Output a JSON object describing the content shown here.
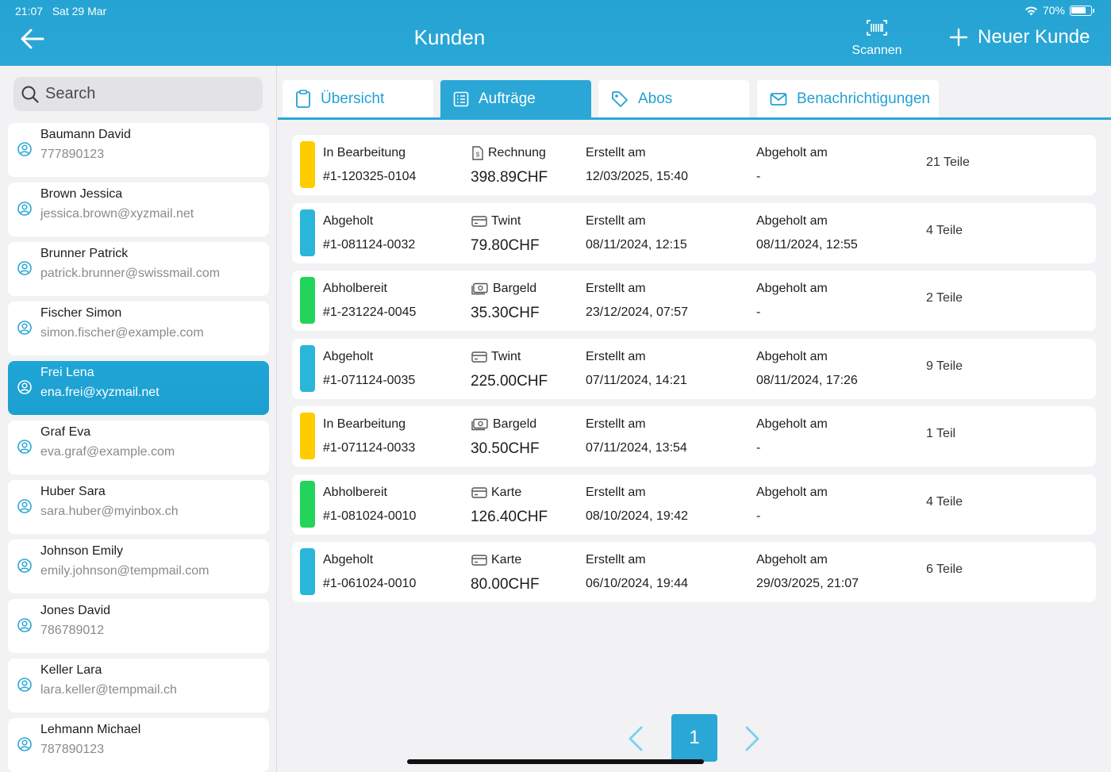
{
  "status": {
    "time": "21:07",
    "date": "Sat 29 Mar",
    "battery": "70%"
  },
  "header": {
    "title": "Kunden",
    "scan_label": "Scannen",
    "new_label": "Neuer Kunde"
  },
  "search": {
    "placeholder": "Search"
  },
  "customers": [
    {
      "name": "Baumann David",
      "sub": "777890123"
    },
    {
      "name": "Brown Jessica",
      "sub": "jessica.brown@xyzmail.net"
    },
    {
      "name": "Brunner Patrick",
      "sub": "patrick.brunner@swissmail.com"
    },
    {
      "name": "Fischer Simon",
      "sub": "simon.fischer@example.com"
    },
    {
      "name": "Frei Lena",
      "sub": "ena.frei@xyzmail.net",
      "active": true
    },
    {
      "name": "Graf Eva",
      "sub": "eva.graf@example.com"
    },
    {
      "name": "Huber Sara",
      "sub": "sara.huber@myinbox.ch"
    },
    {
      "name": "Johnson Emily",
      "sub": "emily.johnson@tempmail.com"
    },
    {
      "name": "Jones David",
      "sub": "786789012"
    },
    {
      "name": "Keller Lara",
      "sub": "lara.keller@tempmail.ch"
    },
    {
      "name": "Lehmann Michael",
      "sub": "787890123"
    }
  ],
  "tabs": [
    {
      "label": "Übersicht",
      "icon": "clipboard-icon"
    },
    {
      "label": "Aufträge",
      "icon": "list-icon",
      "active": true
    },
    {
      "label": "Abos",
      "icon": "tag-icon"
    },
    {
      "label": "Benachrichtigungen",
      "icon": "mail-icon"
    }
  ],
  "order_labels": {
    "created": "Erstellt am",
    "picked": "Abgeholt am"
  },
  "orders": [
    {
      "status": "In Bearbeitung",
      "color": "#ffcc00",
      "number": "#1-120325-0104",
      "payment": "Rechnung",
      "pay_icon": "invoice-icon",
      "amount": "398.89CHF",
      "created": "12/03/2025, 15:40",
      "picked": "-",
      "items": "21 Teile"
    },
    {
      "status": "Abgeholt",
      "color": "#2ab6d9",
      "number": "#1-081124-0032",
      "payment": "Twint",
      "pay_icon": "card-icon",
      "amount": "79.80CHF",
      "created": "08/11/2024, 12:15",
      "picked": "08/11/2024, 12:55",
      "items": "4 Teile"
    },
    {
      "status": "Abholbereit",
      "color": "#22d55a",
      "number": "#1-231224-0045",
      "payment": "Bargeld",
      "pay_icon": "cash-icon",
      "amount": "35.30CHF",
      "created": "23/12/2024, 07:57",
      "picked": "-",
      "items": "2 Teile"
    },
    {
      "status": "Abgeholt",
      "color": "#2ab6d9",
      "number": "#1-071124-0035",
      "payment": "Twint",
      "pay_icon": "card-icon",
      "amount": "225.00CHF",
      "created": "07/11/2024, 14:21",
      "picked": "08/11/2024, 17:26",
      "items": "9 Teile"
    },
    {
      "status": "In Bearbeitung",
      "color": "#ffcc00",
      "number": "#1-071124-0033",
      "payment": "Bargeld",
      "pay_icon": "cash-icon",
      "amount": "30.50CHF",
      "created": "07/11/2024, 13:54",
      "picked": "-",
      "items": "1 Teil"
    },
    {
      "status": "Abholbereit",
      "color": "#22d55a",
      "number": "#1-081024-0010",
      "payment": "Karte",
      "pay_icon": "card-icon",
      "amount": "126.40CHF",
      "created": "08/10/2024, 19:42",
      "picked": "-",
      "items": "4 Teile"
    },
    {
      "status": "Abgeholt",
      "color": "#2ab6d9",
      "number": "#1-061024-0010",
      "payment": "Karte",
      "pay_icon": "card-icon",
      "amount": "80.00CHF",
      "created": "06/10/2024, 19:44",
      "picked": "29/03/2025, 21:07",
      "items": "6 Teile"
    }
  ],
  "pagination": {
    "current": "1"
  },
  "colors": {
    "accent": "#2aa7d6"
  }
}
